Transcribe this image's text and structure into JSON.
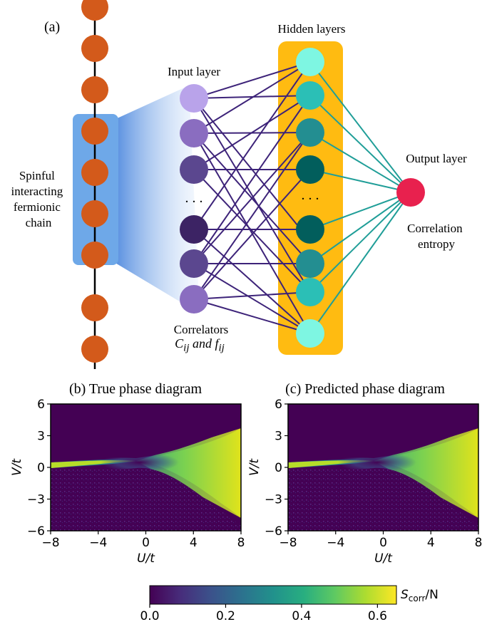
{
  "panel_a": {
    "label": "(a)",
    "chain_label": [
      "Spinful",
      "interacting",
      "fermionic",
      "chain"
    ],
    "input_label": "Input layer",
    "hidden_label": "Hidden layers",
    "output_label": "Output layer",
    "output_caption": [
      "Correlation",
      "entropy"
    ],
    "correlators_line1": "Correlators",
    "correlators_line2": "C<sub>ij</sub> and f<sub>ij</sub>",
    "ellipsis": ". . ."
  },
  "colors": {
    "chain_site": "#d35a1b",
    "chain_box": "#6ea8e8",
    "hidden_box": "#ffbb11",
    "input_edges": "#3d2379",
    "output_edges": "#209e98",
    "output_node": "#e8214e",
    "input_nodes": [
      "#b9a3ea",
      "#8a6dc0",
      "#5b478f",
      "#3c2364",
      "#5b478f",
      "#8a6dc0"
    ],
    "hidden_nodes": [
      "#7ef6e2",
      "#2bbfb6",
      "#238e91",
      "#025e5c",
      "#025e5c",
      "#238e91",
      "#2bbfb6",
      "#7ef6e2"
    ]
  },
  "panel_b": {
    "title": "(b) True phase diagram"
  },
  "panel_c": {
    "title": "(c) Predicted phase diagram"
  },
  "chart_data": [
    {
      "type": "heatmap",
      "title": "(b) True phase diagram",
      "xlabel": "U/t",
      "ylabel": "V/t",
      "xlim": [
        -8,
        8
      ],
      "ylim": [
        -6,
        6
      ],
      "xticks": [
        "−8",
        "−4",
        "0",
        "4",
        "8"
      ],
      "yticks": [
        "−6",
        "−3",
        "0",
        "3",
        "6"
      ],
      "colorbar": {
        "label": "S_corr/N",
        "range": [
          0.0,
          0.65
        ],
        "ticks": [
          "0.0",
          "0.2",
          "0.4",
          "0.6"
        ]
      }
    },
    {
      "type": "heatmap",
      "title": "(c) Predicted phase diagram",
      "xlabel": "U/t",
      "ylabel": "V/t",
      "xlim": [
        -8,
        8
      ],
      "ylim": [
        -6,
        6
      ],
      "xticks": [
        "−8",
        "−4",
        "0",
        "4",
        "8"
      ],
      "yticks": [
        "−6",
        "−3",
        "0",
        "3",
        "6"
      ],
      "colorbar": {
        "label": "S_corr/N",
        "range": [
          0.0,
          0.65
        ],
        "ticks": [
          "0.0",
          "0.2",
          "0.4",
          "0.6"
        ]
      }
    }
  ]
}
